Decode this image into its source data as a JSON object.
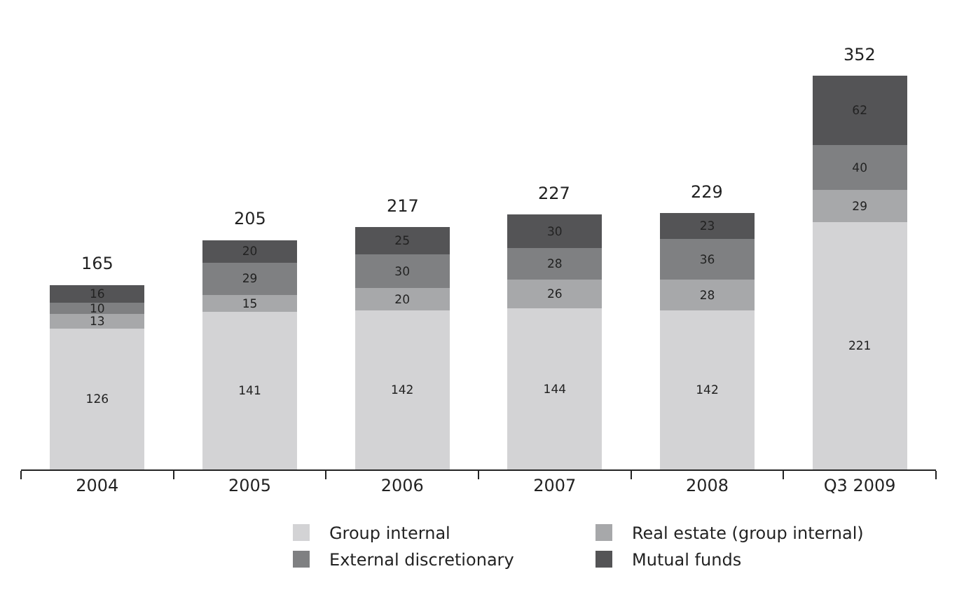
{
  "chart_data": {
    "type": "bar",
    "stacked": true,
    "data_labels": true,
    "legend": "bottom",
    "categories": [
      "2004",
      "2005",
      "2006",
      "2007",
      "2008",
      "Q3 2009"
    ],
    "series": [
      {
        "name": "Group internal",
        "color": "#d3d3d5",
        "values": [
          126,
          141,
          142,
          144,
          142,
          221
        ]
      },
      {
        "name": "Real estate (group internal)",
        "color": "#a7a8aa",
        "values": [
          13,
          15,
          20,
          26,
          28,
          29
        ]
      },
      {
        "name": "External discretionary",
        "color": "#7f8082",
        "values": [
          10,
          29,
          30,
          28,
          36,
          40
        ]
      },
      {
        "name": "Mutual funds",
        "color": "#545456",
        "values": [
          16,
          20,
          25,
          30,
          23,
          62
        ]
      }
    ],
    "totals": [
      "165",
      "205",
      "217",
      "227",
      "229",
      "352"
    ]
  }
}
